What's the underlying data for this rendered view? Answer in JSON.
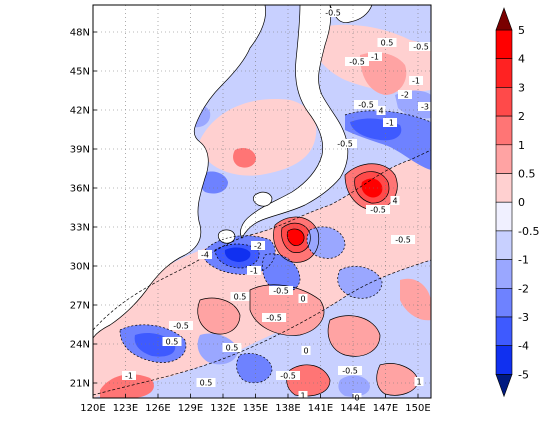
{
  "map": {
    "lat_ticks": [
      "48N",
      "45N",
      "42N",
      "39N",
      "36N",
      "33N",
      "30N",
      "27N",
      "24N",
      "21N"
    ],
    "lon_ticks": [
      "120E",
      "123E",
      "126E",
      "129E",
      "132E",
      "135E",
      "138E",
      "141E",
      "144E",
      "147E",
      "150E"
    ]
  },
  "colorbar": {
    "labels": [
      "5",
      "4",
      "3",
      "2",
      "1",
      "0.5",
      "0",
      "-0.5",
      "-1",
      "-2",
      "-3",
      "-4",
      "-5"
    ],
    "colors": [
      "#ff0000",
      "#ff2222",
      "#ff4a4a",
      "#ff7575",
      "#ffa3a3",
      "#ffd0d0",
      "#f0f0ff",
      "#c8d0ff",
      "#9aa7ff",
      "#6e82ff",
      "#3e5aff",
      "#1030f0"
    ],
    "top_arrow_color": "#7a0000",
    "bottom_arrow_color": "#001a80"
  },
  "contour_labels": [
    {
      "text": "-0.5"
    },
    {
      "text": "0.5"
    },
    {
      "text": "-0.5"
    },
    {
      "text": "-1"
    },
    {
      "text": "-0.5"
    },
    {
      "text": "-1"
    },
    {
      "text": "-2"
    },
    {
      "text": "-3"
    },
    {
      "text": "4"
    },
    {
      "text": "-1"
    },
    {
      "text": "-0.5"
    },
    {
      "text": "-0.5"
    },
    {
      "text": "-4"
    },
    {
      "text": "-2"
    },
    {
      "text": "-1"
    },
    {
      "text": "4"
    },
    {
      "text": "-0.5"
    },
    {
      "text": "-0.5"
    },
    {
      "text": "0.5"
    },
    {
      "text": "-0.5"
    },
    {
      "text": "0"
    },
    {
      "text": "-0.5"
    },
    {
      "text": "0.5"
    },
    {
      "text": "-0.5"
    },
    {
      "text": "0.5"
    },
    {
      "text": "0"
    },
    {
      "text": "1"
    },
    {
      "text": "-0.5"
    },
    {
      "text": "-1"
    },
    {
      "text": "0.5"
    },
    {
      "text": "-0.5"
    },
    {
      "text": "1"
    },
    {
      "text": "0"
    }
  ]
}
